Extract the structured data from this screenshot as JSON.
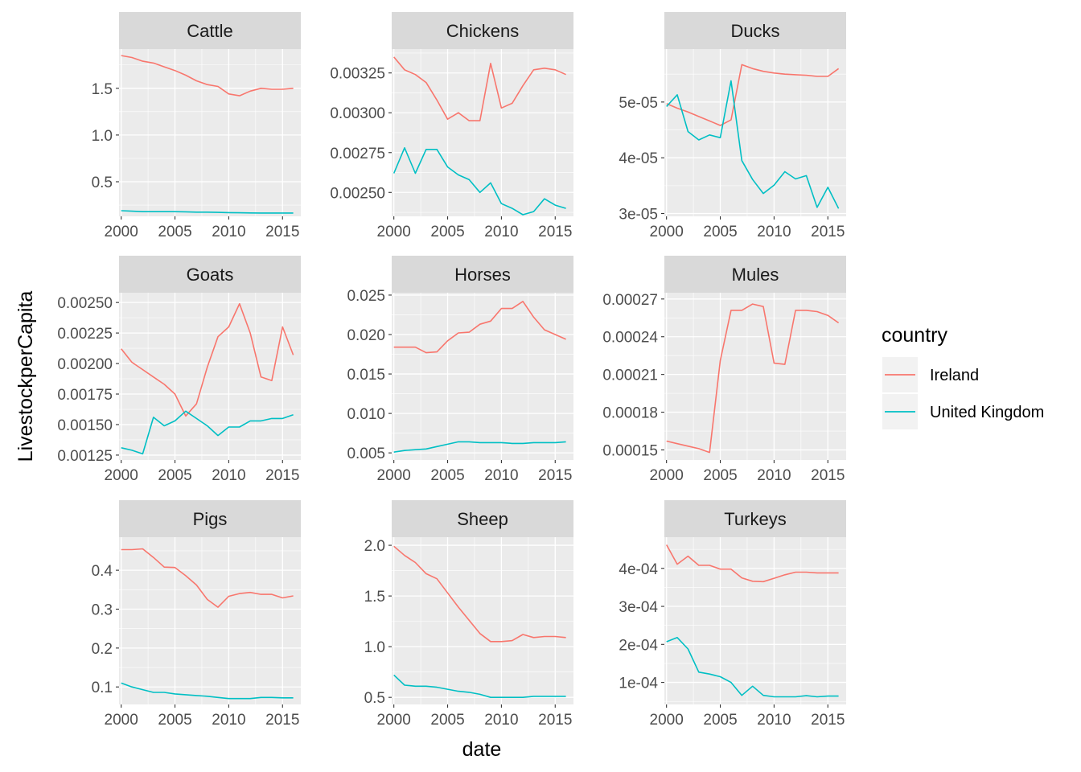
{
  "colors": {
    "Ireland": "#F8766D",
    "United Kingdom": "#00BFC4",
    "panel_bg": "#EBEBEB",
    "strip_bg": "#D9D9D9",
    "grid": "#FFFFFF"
  },
  "axis": {
    "xlabel": "date",
    "ylabel": "LivestockperCapita"
  },
  "legend": {
    "title": "country",
    "placement": "right",
    "items": [
      "Ireland",
      "United Kingdom"
    ]
  },
  "chart_data": [
    {
      "type": "line",
      "title": "Cattle",
      "x": [
        2000,
        2001,
        2002,
        2003,
        2004,
        2005,
        2006,
        2007,
        2008,
        2009,
        2010,
        2011,
        2012,
        2013,
        2014,
        2015,
        2016
      ],
      "xlim": [
        1999.8,
        2016.7
      ],
      "xticks": [
        2000,
        2005,
        2010,
        2015
      ],
      "xtick_labels": [
        "2000",
        "2005",
        "2010",
        "2015"
      ],
      "ylim": [
        0.13,
        1.92
      ],
      "yticks": [
        0.5,
        1.0,
        1.5
      ],
      "ytick_labels": [
        "0.5",
        "1.0",
        "1.5"
      ],
      "series": [
        {
          "name": "Ireland",
          "values": [
            1.85,
            1.83,
            1.79,
            1.77,
            1.73,
            1.69,
            1.64,
            1.58,
            1.54,
            1.52,
            1.44,
            1.42,
            1.47,
            1.5,
            1.49,
            1.49,
            1.5
          ]
        },
        {
          "name": "United Kingdom",
          "values": [
            0.19,
            0.185,
            0.18,
            0.18,
            0.18,
            0.18,
            0.178,
            0.175,
            0.175,
            0.172,
            0.17,
            0.168,
            0.166,
            0.165,
            0.165,
            0.165,
            0.165
          ]
        }
      ]
    },
    {
      "type": "line",
      "title": "Chickens",
      "x": [
        2000,
        2001,
        2002,
        2003,
        2004,
        2005,
        2006,
        2007,
        2008,
        2009,
        2010,
        2011,
        2012,
        2013,
        2014,
        2015,
        2016
      ],
      "xlim": [
        1999.8,
        2016.7
      ],
      "xticks": [
        2000,
        2005,
        2010,
        2015
      ],
      "xtick_labels": [
        "2000",
        "2005",
        "2010",
        "2015"
      ],
      "ylim": [
        0.00235,
        0.0034
      ],
      "yticks": [
        0.0025,
        0.00275,
        0.003,
        0.00325
      ],
      "ytick_labels": [
        "0.00250",
        "0.00275",
        "0.00300",
        "0.00325"
      ],
      "series": [
        {
          "name": "Ireland",
          "values": [
            0.00335,
            0.00327,
            0.00324,
            0.00319,
            0.00308,
            0.00296,
            0.003,
            0.00295,
            0.00295,
            0.00331,
            0.00303,
            0.00306,
            0.00317,
            0.00327,
            0.00328,
            0.00327,
            0.00324
          ]
        },
        {
          "name": "United Kingdom",
          "values": [
            0.00262,
            0.00278,
            0.00262,
            0.00277,
            0.00277,
            0.00266,
            0.00261,
            0.00258,
            0.0025,
            0.00256,
            0.00243,
            0.0024,
            0.00236,
            0.00238,
            0.00246,
            0.00242,
            0.0024
          ]
        }
      ]
    },
    {
      "type": "line",
      "title": "Ducks",
      "x": [
        2000,
        2001,
        2002,
        2003,
        2004,
        2005,
        2006,
        2007,
        2008,
        2009,
        2010,
        2011,
        2012,
        2013,
        2014,
        2015,
        2016
      ],
      "xlim": [
        1999.8,
        2016.7
      ],
      "xticks": [
        2000,
        2005,
        2010,
        2015
      ],
      "xtick_labels": [
        "2000",
        "2005",
        "2010",
        "2015"
      ],
      "ylim": [
        2.95e-05,
        5.95e-05
      ],
      "yticks": [
        3e-05,
        4e-05,
        5e-05
      ],
      "ytick_labels": [
        "3e-05",
        "4e-05",
        "5e-05"
      ],
      "series": [
        {
          "name": "Ireland",
          "values": [
            4.97e-05,
            4.89e-05,
            4.82e-05,
            4.74e-05,
            4.66e-05,
            4.58e-05,
            4.68e-05,
            5.67e-05,
            5.6e-05,
            5.55e-05,
            5.52e-05,
            5.5e-05,
            5.49e-05,
            5.48e-05,
            5.46e-05,
            5.46e-05,
            5.6e-05
          ]
        },
        {
          "name": "United Kingdom",
          "values": [
            4.92e-05,
            5.13e-05,
            4.47e-05,
            4.32e-05,
            4.41e-05,
            4.36e-05,
            5.38e-05,
            3.95e-05,
            3.61e-05,
            3.36e-05,
            3.51e-05,
            3.75e-05,
            3.62e-05,
            3.68e-05,
            3.11e-05,
            3.47e-05,
            3.09e-05
          ]
        }
      ]
    },
    {
      "type": "line",
      "title": "Goats",
      "x": [
        2000,
        2001,
        2002,
        2003,
        2004,
        2005,
        2006,
        2007,
        2008,
        2009,
        2010,
        2011,
        2012,
        2013,
        2014,
        2015,
        2016
      ],
      "xlim": [
        1999.8,
        2016.7
      ],
      "xticks": [
        2000,
        2005,
        2010,
        2015
      ],
      "xtick_labels": [
        "2000",
        "2005",
        "2010",
        "2015"
      ],
      "ylim": [
        0.00121,
        0.00258
      ],
      "yticks": [
        0.00125,
        0.0015,
        0.00175,
        0.002,
        0.00225,
        0.0025
      ],
      "ytick_labels": [
        "0.00125",
        "0.00150",
        "0.00175",
        "0.00200",
        "0.00225",
        "0.00250"
      ],
      "series": [
        {
          "name": "Ireland",
          "values": [
            0.00212,
            0.00201,
            0.00195,
            0.00189,
            0.00183,
            0.00175,
            0.00157,
            0.00167,
            0.00197,
            0.00222,
            0.0023,
            0.00249,
            0.00225,
            0.00189,
            0.00186,
            0.0023,
            0.00207
          ]
        },
        {
          "name": "United Kingdom",
          "values": [
            0.00131,
            0.00129,
            0.00126,
            0.00156,
            0.00149,
            0.00153,
            0.00161,
            0.00155,
            0.00149,
            0.00141,
            0.00148,
            0.00148,
            0.00153,
            0.00153,
            0.00155,
            0.00155,
            0.00158
          ]
        }
      ]
    },
    {
      "type": "line",
      "title": "Horses",
      "x": [
        2000,
        2001,
        2002,
        2003,
        2004,
        2005,
        2006,
        2007,
        2008,
        2009,
        2010,
        2011,
        2012,
        2013,
        2014,
        2015,
        2016
      ],
      "xlim": [
        1999.8,
        2016.7
      ],
      "xticks": [
        2000,
        2005,
        2010,
        2015
      ],
      "xtick_labels": [
        "2000",
        "2005",
        "2010",
        "2015"
      ],
      "ylim": [
        0.0041,
        0.0253
      ],
      "yticks": [
        0.005,
        0.01,
        0.015,
        0.02,
        0.025
      ],
      "ytick_labels": [
        "0.005",
        "0.010",
        "0.015",
        "0.020",
        "0.025"
      ],
      "series": [
        {
          "name": "Ireland",
          "values": [
            0.0184,
            0.0184,
            0.0184,
            0.0177,
            0.0178,
            0.0192,
            0.0202,
            0.0203,
            0.0213,
            0.0217,
            0.0233,
            0.0233,
            0.0242,
            0.0222,
            0.0206,
            0.02,
            0.0194
          ]
        },
        {
          "name": "United Kingdom",
          "values": [
            0.0051,
            0.0053,
            0.0054,
            0.0055,
            0.0058,
            0.0061,
            0.0064,
            0.0064,
            0.0063,
            0.0063,
            0.0063,
            0.0062,
            0.0062,
            0.0063,
            0.0063,
            0.0063,
            0.0064
          ]
        }
      ]
    },
    {
      "type": "line",
      "title": "Mules",
      "x": [
        2000,
        2001,
        2002,
        2003,
        2004,
        2005,
        2006,
        2007,
        2008,
        2009,
        2010,
        2011,
        2012,
        2013,
        2014,
        2015,
        2016
      ],
      "xlim": [
        1999.8,
        2016.7
      ],
      "xticks": [
        2000,
        2005,
        2010,
        2015
      ],
      "xtick_labels": [
        "2000",
        "2005",
        "2010",
        "2015"
      ],
      "ylim": [
        0.000142,
        0.000275
      ],
      "yticks": [
        0.00015,
        0.00018,
        0.00021,
        0.00024,
        0.00027
      ],
      "ytick_labels": [
        "0.00015",
        "0.00018",
        "0.00021",
        "0.00024",
        "0.00027"
      ],
      "series": [
        {
          "name": "Ireland",
          "values": [
            0.000157,
            0.000155,
            0.000153,
            0.000151,
            0.000148,
            0.000221,
            0.000261,
            0.000261,
            0.000266,
            0.000264,
            0.000219,
            0.000218,
            0.000261,
            0.000261,
            0.00026,
            0.000257,
            0.000251
          ]
        }
      ]
    },
    {
      "type": "line",
      "title": "Pigs",
      "x": [
        2000,
        2001,
        2002,
        2003,
        2004,
        2005,
        2006,
        2007,
        2008,
        2009,
        2010,
        2011,
        2012,
        2013,
        2014,
        2015,
        2016
      ],
      "xlim": [
        1999.8,
        2016.7
      ],
      "xticks": [
        2000,
        2005,
        2010,
        2015
      ],
      "xtick_labels": [
        "2000",
        "2005",
        "2010",
        "2015"
      ],
      "ylim": [
        0.055,
        0.485
      ],
      "yticks": [
        0.1,
        0.2,
        0.3,
        0.4
      ],
      "ytick_labels": [
        "0.1",
        "0.2",
        "0.3",
        "0.4"
      ],
      "series": [
        {
          "name": "Ireland",
          "values": [
            0.453,
            0.453,
            0.455,
            0.433,
            0.408,
            0.407,
            0.386,
            0.362,
            0.325,
            0.305,
            0.333,
            0.34,
            0.343,
            0.338,
            0.338,
            0.329,
            0.334
          ]
        },
        {
          "name": "United Kingdom",
          "values": [
            0.11,
            0.1,
            0.093,
            0.086,
            0.086,
            0.082,
            0.08,
            0.078,
            0.076,
            0.073,
            0.07,
            0.07,
            0.07,
            0.073,
            0.073,
            0.072,
            0.072
          ]
        }
      ]
    },
    {
      "type": "line",
      "title": "Sheep",
      "x": [
        2000,
        2001,
        2002,
        2003,
        2004,
        2005,
        2006,
        2007,
        2008,
        2009,
        2010,
        2011,
        2012,
        2013,
        2014,
        2015,
        2016
      ],
      "xlim": [
        1999.8,
        2016.7
      ],
      "xticks": [
        2000,
        2005,
        2010,
        2015
      ],
      "xtick_labels": [
        "2000",
        "2005",
        "2010",
        "2015"
      ],
      "ylim": [
        0.43,
        2.08
      ],
      "yticks": [
        0.5,
        1.0,
        1.5,
        2.0
      ],
      "ytick_labels": [
        "0.5",
        "1.0",
        "1.5",
        "2.0"
      ],
      "series": [
        {
          "name": "Ireland",
          "values": [
            1.99,
            1.9,
            1.83,
            1.72,
            1.67,
            1.53,
            1.39,
            1.26,
            1.13,
            1.05,
            1.05,
            1.06,
            1.12,
            1.09,
            1.1,
            1.1,
            1.09
          ]
        },
        {
          "name": "United Kingdom",
          "values": [
            0.72,
            0.62,
            0.61,
            0.61,
            0.6,
            0.58,
            0.56,
            0.55,
            0.53,
            0.5,
            0.5,
            0.5,
            0.5,
            0.51,
            0.51,
            0.51,
            0.51
          ]
        }
      ]
    },
    {
      "type": "line",
      "title": "Turkeys",
      "x": [
        2000,
        2001,
        2002,
        2003,
        2004,
        2005,
        2006,
        2007,
        2008,
        2009,
        2010,
        2011,
        2012,
        2013,
        2014,
        2015,
        2016
      ],
      "xlim": [
        1999.8,
        2016.7
      ],
      "xticks": [
        2000,
        2005,
        2010,
        2015
      ],
      "xtick_labels": [
        "2000",
        "2005",
        "2010",
        "2015"
      ],
      "ylim": [
        4.2e-05,
        0.000482
      ],
      "yticks": [
        0.0001,
        0.0002,
        0.0003,
        0.0004
      ],
      "ytick_labels": [
        "1e-04",
        "2e-04",
        "3e-04",
        "4e-04"
      ],
      "series": [
        {
          "name": "Ireland",
          "values": [
            0.000462,
            0.000411,
            0.000432,
            0.000408,
            0.000408,
            0.000398,
            0.000398,
            0.000375,
            0.000366,
            0.000365,
            0.000374,
            0.000383,
            0.00039,
            0.00039,
            0.000388,
            0.000388,
            0.000388
          ]
        },
        {
          "name": "United Kingdom",
          "values": [
            0.000207,
            0.000218,
            0.000188,
            0.000127,
            0.000122,
            0.000115,
            0.0001,
            6.6e-05,
            9e-05,
            6.6e-05,
            6.2e-05,
            6.2e-05,
            6.2e-05,
            6.5e-05,
            6.2e-05,
            6.4e-05,
            6.4e-05
          ]
        }
      ]
    }
  ]
}
